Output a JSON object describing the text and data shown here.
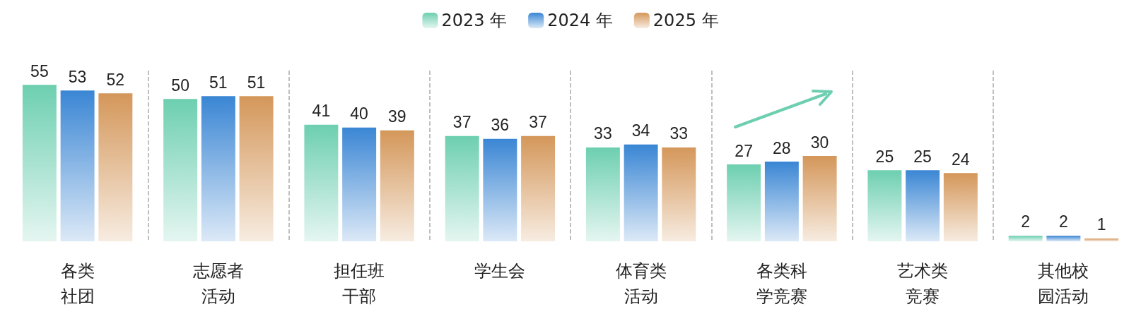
{
  "chart_data": {
    "type": "bar",
    "categories": [
      "各类社团",
      "志愿者活动",
      "担任班干部",
      "学生会",
      "体育类活动",
      "各类科学竞赛",
      "艺术类竞赛",
      "其他校园活动"
    ],
    "series": [
      {
        "name": "2023 年",
        "color": "#6dcfb0",
        "values": [
          55,
          50,
          41,
          37,
          33,
          27,
          25,
          2
        ]
      },
      {
        "name": "2024 年",
        "color": "#3a86d4",
        "values": [
          53,
          51,
          40,
          36,
          34,
          28,
          25,
          2
        ]
      },
      {
        "name": "2025 年",
        "color": "#d4975a",
        "values": [
          52,
          51,
          39,
          37,
          33,
          30,
          24,
          1
        ]
      }
    ],
    "data_labels": true,
    "legend": "top",
    "grid": "x"
  }
}
